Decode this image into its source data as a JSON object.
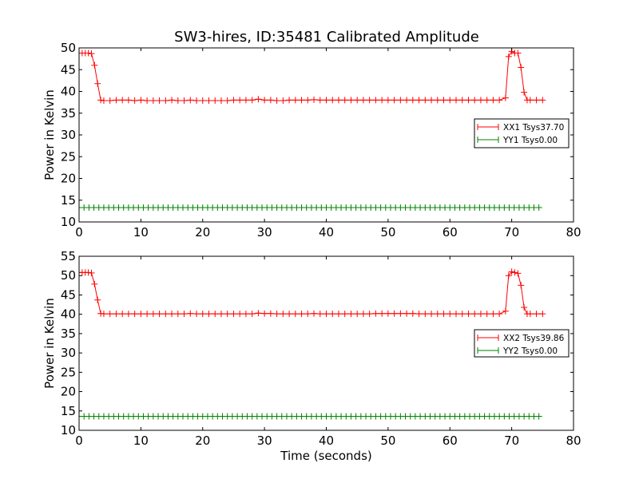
{
  "title": "SW3-hires, ID:35481 Calibrated Amplitude",
  "chart_data": [
    {
      "type": "line",
      "ylabel": "Power in Kelvin",
      "xlabel": "",
      "xlim": [
        0,
        80
      ],
      "ylim": [
        10,
        50
      ],
      "xticks": [
        0,
        10,
        20,
        30,
        40,
        50,
        60,
        70,
        80
      ],
      "yticks": [
        10,
        15,
        20,
        25,
        30,
        35,
        40,
        45,
        50
      ],
      "grid": false,
      "legend_position": "right",
      "series": [
        {
          "name": "XX1 Tsys37.70",
          "color": "#ff0000",
          "x": [
            0,
            0.5,
            1,
            1.5,
            2,
            2.5,
            3,
            3.5,
            4,
            5,
            6,
            7,
            8,
            9,
            10,
            11,
            12,
            13,
            14,
            15,
            16,
            17,
            18,
            19,
            20,
            21,
            22,
            23,
            24,
            25,
            26,
            27,
            28,
            29,
            30,
            31,
            32,
            33,
            34,
            35,
            36,
            37,
            38,
            39,
            40,
            41,
            42,
            43,
            44,
            45,
            46,
            47,
            48,
            49,
            50,
            51,
            52,
            53,
            54,
            55,
            56,
            57,
            58,
            59,
            60,
            61,
            62,
            63,
            64,
            65,
            66,
            67,
            68,
            69,
            69.5,
            70,
            70.5,
            71,
            71.5,
            72,
            72.5,
            73,
            74,
            75
          ],
          "values": [
            48.8,
            48.8,
            48.8,
            48.8,
            48.7,
            46,
            41.8,
            38,
            37.9,
            37.9,
            38,
            38,
            38,
            37.9,
            38,
            37.9,
            37.9,
            37.9,
            37.9,
            38,
            37.9,
            37.9,
            38,
            37.9,
            37.9,
            37.9,
            37.9,
            37.9,
            37.9,
            38,
            38,
            38,
            38,
            38.2,
            38,
            38,
            37.9,
            37.9,
            38,
            38,
            38,
            38,
            38.1,
            38,
            38,
            38,
            38,
            38,
            38,
            38,
            38,
            38,
            38,
            38,
            38,
            38,
            38,
            38,
            38,
            38,
            38,
            38,
            38,
            38,
            38,
            38,
            38,
            38,
            38,
            38,
            38,
            38,
            38,
            38.5,
            48,
            49.2,
            48.8,
            48.8,
            45.5,
            39.8,
            38,
            38,
            38,
            38
          ]
        },
        {
          "name": "YY1 Tsys0.00",
          "color": "#008000",
          "x": [
            0,
            75
          ],
          "values": [
            13.3,
            13.3
          ],
          "marker_step": 0.8
        }
      ]
    },
    {
      "type": "line",
      "ylabel": "Power in Kelvin",
      "xlabel": "Time (seconds)",
      "xlim": [
        0,
        80
      ],
      "ylim": [
        10,
        55
      ],
      "xticks": [
        0,
        10,
        20,
        30,
        40,
        50,
        60,
        70,
        80
      ],
      "yticks": [
        10,
        15,
        20,
        25,
        30,
        35,
        40,
        45,
        50,
        55
      ],
      "grid": false,
      "legend_position": "right",
      "series": [
        {
          "name": "XX2 Tsys39.86",
          "color": "#ff0000",
          "x": [
            0,
            0.5,
            1,
            1.5,
            2,
            2.5,
            3,
            3.5,
            4,
            5,
            6,
            7,
            8,
            9,
            10,
            11,
            12,
            13,
            14,
            15,
            16,
            17,
            18,
            19,
            20,
            21,
            22,
            23,
            24,
            25,
            26,
            27,
            28,
            29,
            30,
            31,
            32,
            33,
            34,
            35,
            36,
            37,
            38,
            39,
            40,
            41,
            42,
            43,
            44,
            45,
            46,
            47,
            48,
            49,
            50,
            51,
            52,
            53,
            54,
            55,
            56,
            57,
            58,
            59,
            60,
            61,
            62,
            63,
            64,
            65,
            66,
            67,
            68,
            69,
            69.5,
            70,
            70.5,
            71,
            71.5,
            72,
            72.5,
            73,
            74,
            75
          ],
          "values": [
            50.8,
            50.8,
            50.8,
            50.8,
            50.7,
            47.8,
            43.7,
            40.2,
            40.1,
            40.1,
            40.1,
            40.1,
            40.1,
            40.1,
            40.1,
            40.1,
            40.1,
            40.1,
            40.1,
            40.1,
            40.1,
            40.1,
            40.2,
            40.1,
            40.1,
            40.1,
            40.1,
            40.1,
            40.1,
            40.1,
            40.1,
            40.1,
            40.1,
            40.3,
            40.2,
            40.2,
            40.1,
            40.1,
            40.1,
            40.1,
            40.1,
            40.1,
            40.2,
            40.1,
            40.1,
            40.1,
            40.1,
            40.1,
            40.1,
            40.1,
            40.1,
            40.1,
            40.2,
            40.2,
            40.2,
            40.2,
            40.2,
            40.2,
            40.2,
            40.1,
            40.1,
            40.1,
            40.1,
            40.1,
            40.1,
            40.1,
            40.1,
            40.1,
            40.1,
            40.1,
            40.1,
            40.1,
            40.1,
            40.8,
            50.0,
            51.0,
            50.8,
            50.6,
            47.5,
            41.8,
            40.1,
            40.1,
            40.1,
            40.1
          ]
        },
        {
          "name": "YY2 Tsys0.00",
          "color": "#008000",
          "x": [
            0,
            75
          ],
          "values": [
            13.6,
            13.6
          ],
          "marker_step": 0.8
        }
      ]
    }
  ]
}
